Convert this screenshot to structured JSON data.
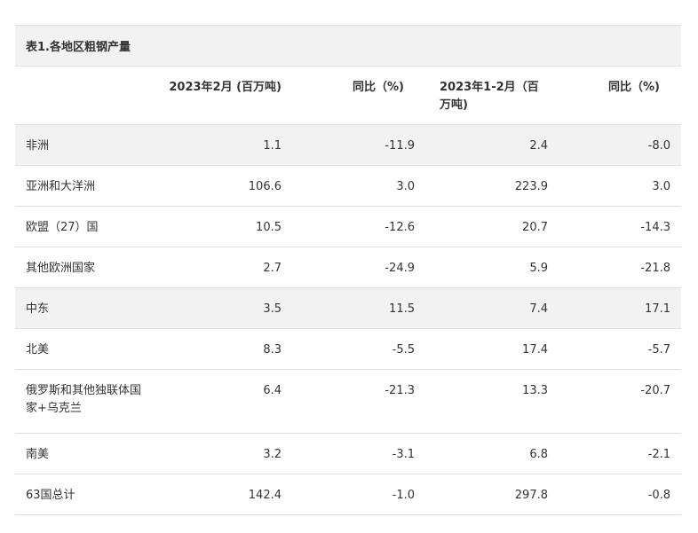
{
  "table": {
    "caption": "表1.各地区粗钢产量",
    "headers": [
      "",
      "2023年2月 (百万吨)",
      "同比（%)",
      "2023年1-2月（百万吨)",
      "同比（%)"
    ],
    "rows": [
      {
        "region": "非洲",
        "feb": "1.1",
        "feb_yoy": "-11.9",
        "janfeb": "2.4",
        "janfeb_yoy": "-8.0"
      },
      {
        "region": "亚洲和大洋洲",
        "feb": "106.6",
        "feb_yoy": "3.0",
        "janfeb": "223.9",
        "janfeb_yoy": "3.0"
      },
      {
        "region": "欧盟（27）国",
        "feb": "10.5",
        "feb_yoy": "-12.6",
        "janfeb": "20.7",
        "janfeb_yoy": "-14.3"
      },
      {
        "region": "其他欧洲国家",
        "feb": "2.7",
        "feb_yoy": "-24.9",
        "janfeb": "5.9",
        "janfeb_yoy": "-21.8"
      },
      {
        "region": "中东",
        "feb": "3.5",
        "feb_yoy": "11.5",
        "janfeb": "7.4",
        "janfeb_yoy": "17.1"
      },
      {
        "region": "北美",
        "feb": "8.3",
        "feb_yoy": "-5.5",
        "janfeb": "17.4",
        "janfeb_yoy": "-5.7"
      },
      {
        "region": "俄罗斯和其他独联体国家+乌克兰",
        "feb": "6.4",
        "feb_yoy": "-21.3",
        "janfeb": "13.3",
        "janfeb_yoy": "-20.7"
      },
      {
        "region": "南美",
        "feb": "3.2",
        "feb_yoy": "-3.1",
        "janfeb": "6.8",
        "janfeb_yoy": "-2.1"
      },
      {
        "region": "63国总计",
        "feb": "142.4",
        "feb_yoy": "-1.0",
        "janfeb": "297.8",
        "janfeb_yoy": "-0.8"
      }
    ]
  }
}
